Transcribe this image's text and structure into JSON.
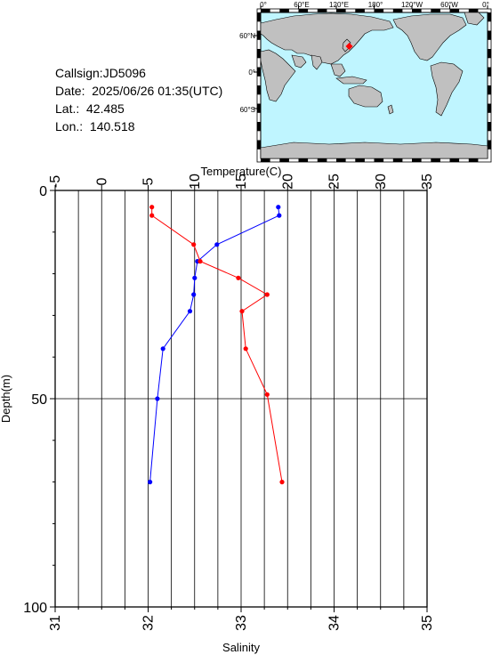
{
  "info": {
    "callsign": "Callsign:JD5096",
    "date": "Date:  2025/06/26 01:35(UTC)",
    "lat": "Lat.:  42.485",
    "lon": "Lon.:  140.518"
  },
  "map": {
    "lon_labels": [
      "0°",
      "60°E",
      "120°E",
      "180°",
      "120°W",
      "60°W",
      "0°"
    ],
    "lat_labels": [
      "60°N",
      "0°",
      "60°S"
    ],
    "station": {
      "lat": 42.485,
      "lon": 140.518
    },
    "colors": {
      "ocean": "#bff5ff",
      "land": "#c0c0c0",
      "marker": "#ff0000"
    }
  },
  "chart_data": {
    "type": "line",
    "top_axis": {
      "label": "Temperature(C)",
      "range": [
        -5,
        35
      ],
      "ticks": [
        "-5",
        "0",
        "5",
        "10",
        "15",
        "20",
        "25",
        "30",
        "35"
      ]
    },
    "bottom_axis": {
      "label": "Salinity",
      "range": [
        31,
        35
      ],
      "ticks": [
        "31",
        "32",
        "33",
        "34",
        "35"
      ]
    },
    "y_axis": {
      "label": "Depth(m)",
      "range": [
        0,
        100
      ],
      "inverted": true,
      "ticks": [
        "0",
        "50",
        "100"
      ]
    },
    "grid": true,
    "series": [
      {
        "axis": "temperature",
        "color": "#0000ff",
        "points": [
          {
            "x": 19.0,
            "y": 4
          },
          {
            "x": 19.1,
            "y": 6
          },
          {
            "x": 12.4,
            "y": 13
          },
          {
            "x": 10.3,
            "y": 17
          },
          {
            "x": 10.0,
            "y": 21
          },
          {
            "x": 9.9,
            "y": 25
          },
          {
            "x": 9.5,
            "y": 29
          },
          {
            "x": 6.6,
            "y": 38
          },
          {
            "x": 6.0,
            "y": 50
          },
          {
            "x": 5.2,
            "y": 70
          }
        ]
      },
      {
        "axis": "salinity",
        "color": "#ff0000",
        "points": [
          {
            "x": 32.04,
            "y": 4
          },
          {
            "x": 32.04,
            "y": 6
          },
          {
            "x": 32.49,
            "y": 13
          },
          {
            "x": 32.56,
            "y": 17
          },
          {
            "x": 32.97,
            "y": 21
          },
          {
            "x": 33.28,
            "y": 25
          },
          {
            "x": 33.01,
            "y": 29
          },
          {
            "x": 33.05,
            "y": 38
          },
          {
            "x": 33.28,
            "y": 49
          },
          {
            "x": 33.44,
            "y": 70
          }
        ]
      }
    ]
  }
}
